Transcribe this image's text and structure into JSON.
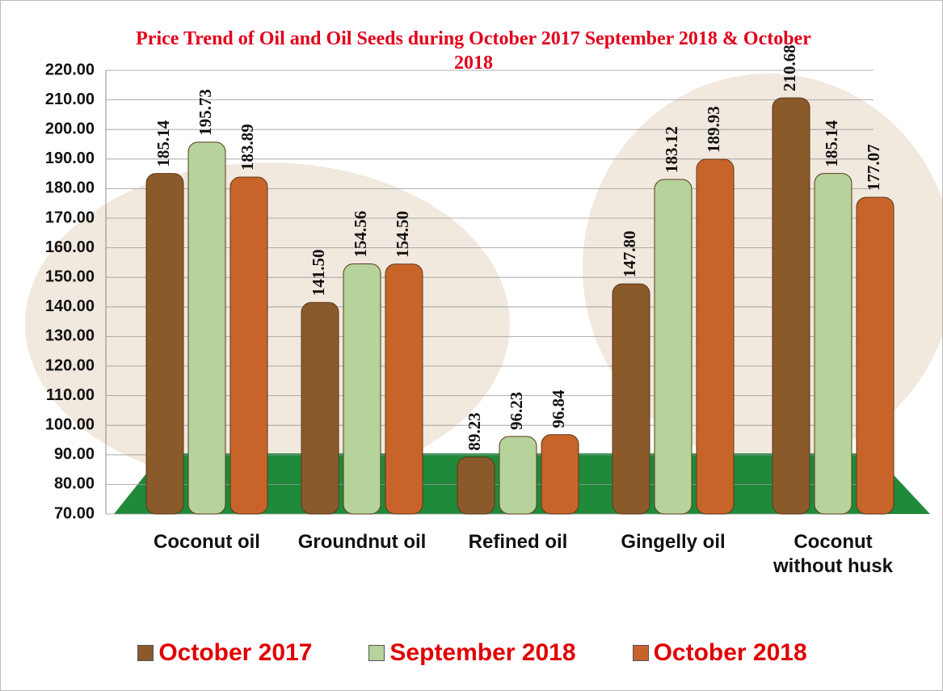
{
  "chart_data": {
    "type": "bar",
    "title": "Price Trend of Oil and Oil Seeds during October 2017 September 2018 & October 2018",
    "categories": [
      "Coconut oil",
      "Groundnut oil",
      "Refined oil",
      "Gingelly oil",
      "Coconut without husk"
    ],
    "series": [
      {
        "name": "October 2017",
        "color": "#8b5a2b",
        "values": [
          185.14,
          141.5,
          89.23,
          147.8,
          210.68
        ],
        "value_labels": [
          "185.14",
          "141.50",
          "89.23",
          "147.80",
          "210.68"
        ]
      },
      {
        "name": "September  2018",
        "color": "#b5d39a",
        "values": [
          195.73,
          154.56,
          96.23,
          183.12,
          185.14
        ],
        "value_labels": [
          "195.73",
          "154.56",
          "96.23",
          "183.12",
          "185.14"
        ]
      },
      {
        "name": "October 2018",
        "color": "#c8642a",
        "values": [
          183.89,
          154.5,
          96.84,
          189.93,
          177.07
        ],
        "value_labels": [
          "183.89",
          "154.50",
          "96.84",
          "189.93",
          "177.07"
        ]
      }
    ],
    "ylim": [
      70,
      220
    ],
    "yticks": [
      {
        "value": 70,
        "label": "70.00"
      },
      {
        "value": 80,
        "label": "80.00"
      },
      {
        "value": 90,
        "label": "90.00"
      },
      {
        "value": 100,
        "label": "100.00"
      },
      {
        "value": 110,
        "label": "110.00"
      },
      {
        "value": 120,
        "label": "120.00"
      },
      {
        "value": 130,
        "label": "130.00"
      },
      {
        "value": 140,
        "label": "140.00"
      },
      {
        "value": 150,
        "label": "150.00"
      },
      {
        "value": 160,
        "label": "160.00"
      },
      {
        "value": 170,
        "label": "170.00"
      },
      {
        "value": 180,
        "label": "180.00"
      },
      {
        "value": 190,
        "label": "190.00"
      },
      {
        "value": 200,
        "label": "200.00"
      },
      {
        "value": 210,
        "label": "210.00"
      },
      {
        "value": 220,
        "label": "220.00"
      }
    ],
    "grid": true
  }
}
